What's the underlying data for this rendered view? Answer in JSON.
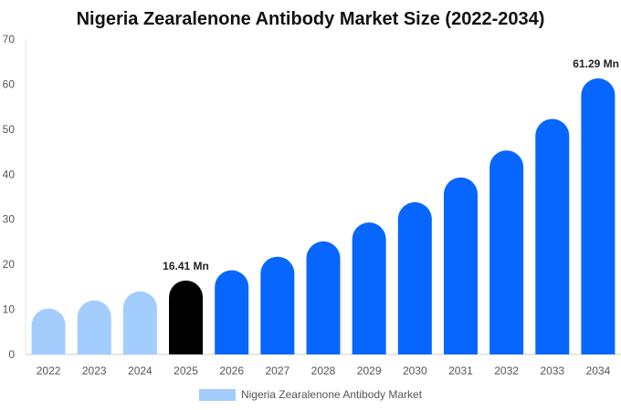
{
  "chart_data": {
    "type": "bar",
    "title": "Nigeria Zearalenone Antibody Market Size (2022-2034)",
    "categories": [
      "2022",
      "2023",
      "2024",
      "2025",
      "2026",
      "2027",
      "2028",
      "2029",
      "2030",
      "2031",
      "2032",
      "2033",
      "2034"
    ],
    "series": [
      {
        "name": "Nigeria Zearalenone Antibody Market",
        "values": [
          10.2,
          12.0,
          14.0,
          16.41,
          18.7,
          21.7,
          25.1,
          29.3,
          33.8,
          39.3,
          45.3,
          52.3,
          61.29
        ]
      }
    ],
    "ylim": [
      0,
      70
    ],
    "yticks": [
      0,
      10,
      20,
      30,
      40,
      50,
      60,
      70
    ],
    "grid": false,
    "legend_position": "bottom",
    "data_labels": [
      {
        "category": "2025",
        "text": "16.41 Mn"
      },
      {
        "category": "2034",
        "text": "61.29 Mn"
      }
    ],
    "colors": {
      "historical": "#a3cdfd",
      "current": "#000000",
      "forecast": "#0766fe",
      "legend": "#a3cdfd"
    },
    "bar_color_groups": [
      "historical",
      "historical",
      "historical",
      "current",
      "forecast",
      "forecast",
      "forecast",
      "forecast",
      "forecast",
      "forecast",
      "forecast",
      "forecast",
      "forecast"
    ]
  }
}
